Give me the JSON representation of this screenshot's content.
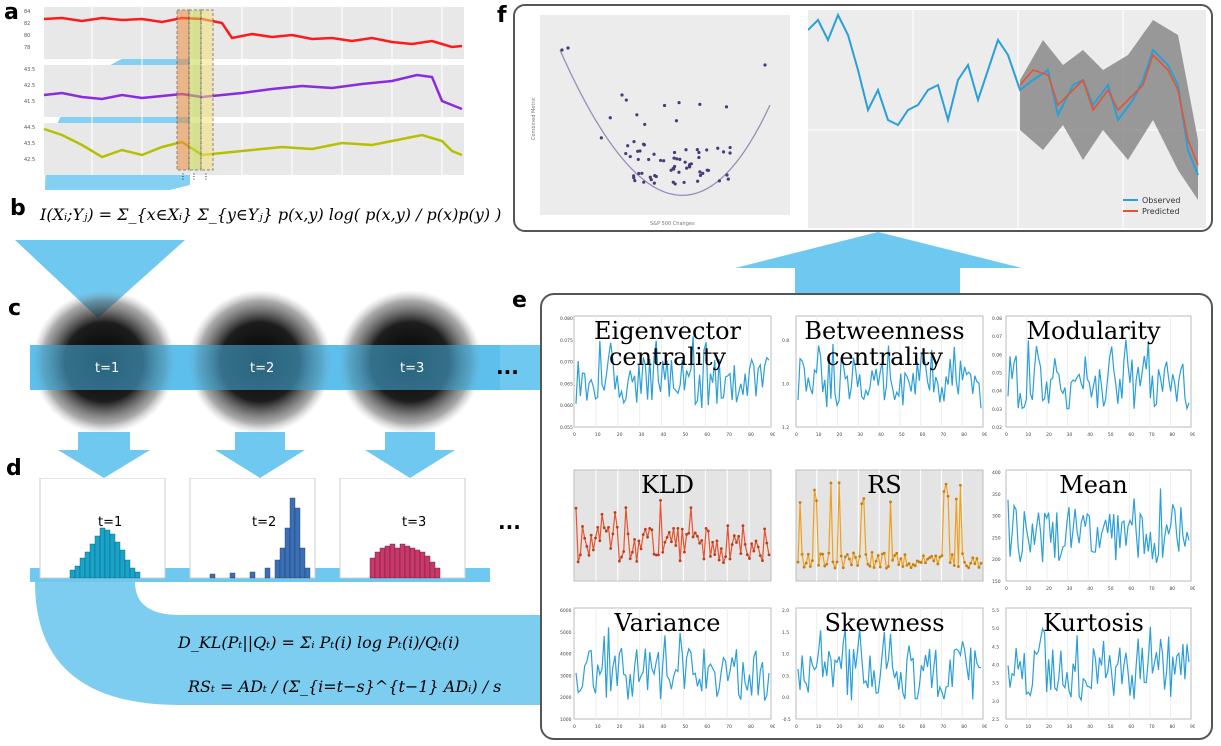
{
  "panels": {
    "a": "a",
    "b": "b",
    "c": "c",
    "d": "d",
    "e": "e",
    "f": "f"
  },
  "formula_b": "I(Xᵢ;Yⱼ) = Σ_{x∈Xᵢ} Σ_{y∈Yⱼ} p(x,y) log( p(x,y) / p(x)p(y) )",
  "formula_kld": "D_KL(Pₜ||Qₜ) = Σᵢ Pₜ(i) log Pₜ(i)/Qₜ(i)",
  "formula_rs": "RSₜ = ADₜ / (Σ_{i=t−s}^{t−1} ADᵢ) / s",
  "networks": [
    {
      "label": "t=1"
    },
    {
      "label": "t=2"
    },
    {
      "label": "t=3"
    }
  ],
  "histograms": [
    {
      "label": "t=1",
      "color": "#1aa3c9"
    },
    {
      "label": "t=2",
      "color": "#3a6fb5"
    },
    {
      "label": "t=3",
      "color": "#c9386a"
    }
  ],
  "ellipsis": "···",
  "legend": {
    "observed": "Observed",
    "predicted": "Predicted"
  },
  "scatter_xlabel": "S&P 500 Changes",
  "scatter_ylabel": "Combined Metric",
  "colors": {
    "arrow": "#6fc8f0",
    "arrowDark": "#3aa6d6",
    "lineBlue": "#2a9fd8",
    "lineOrange": "#e8532f",
    "lineGold": "#f0a020",
    "red": "#ff1a1a",
    "purple": "#8a2be2",
    "olive": "#b5c000"
  },
  "metrics": [
    {
      "title_lines": [
        "Eigenvector",
        "centrality"
      ],
      "yticks": [
        "0.080",
        "0.075",
        "0.070",
        "0.065",
        "0.060",
        "0.055"
      ],
      "style": "white"
    },
    {
      "title_lines": [
        "Betweenness",
        "centrality"
      ],
      "yticks": [
        "",
        "0.8",
        "",
        "1.0",
        "",
        "1.2"
      ],
      "style": "white"
    },
    {
      "title_lines": [
        "Modularity"
      ],
      "yticks": [
        "0.08",
        "0.07",
        "0.06",
        "0.05",
        "0.04",
        "0.03",
        "0.02"
      ],
      "style": "white"
    },
    {
      "title_lines": [
        "KLD"
      ],
      "yticks": [],
      "style": "grey"
    },
    {
      "title_lines": [
        "RS"
      ],
      "yticks": [],
      "style": "grey"
    },
    {
      "title_lines": [
        "Mean"
      ],
      "yticks": [
        "400",
        "350",
        "300",
        "250",
        "200",
        "150"
      ],
      "style": "white"
    },
    {
      "title_lines": [
        "Variance"
      ],
      "yticks": [
        "6000",
        "5000",
        "4000",
        "3000",
        "2000",
        "1000"
      ],
      "style": "white"
    },
    {
      "title_lines": [
        "Skewness"
      ],
      "yticks": [
        "2.0",
        "1.5",
        "1.0",
        "0.5",
        "0.0",
        "-0.5"
      ],
      "style": "white"
    },
    {
      "title_lines": [
        "Kurtosis"
      ],
      "yticks": [
        "5.5",
        "5.0",
        "4.5",
        "4.0",
        "3.5",
        "3.0",
        "2.5"
      ],
      "style": "white"
    }
  ],
  "xticks": [
    "0",
    "10",
    "20",
    "30",
    "40",
    "50",
    "60",
    "70",
    "80",
    "90"
  ]
}
